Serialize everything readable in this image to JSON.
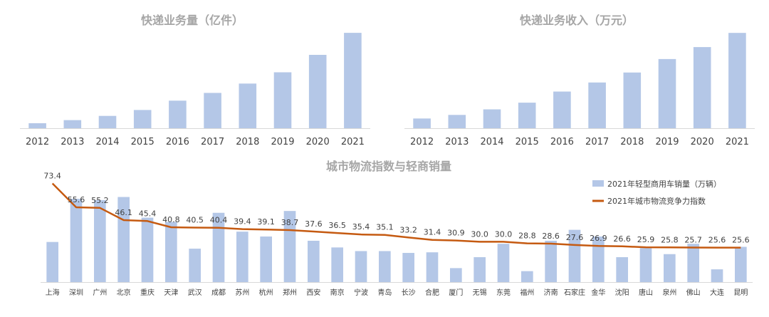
{
  "colors": {
    "bar": "#b4c7e7",
    "line": "#c55a11",
    "title": "#a6a6a6",
    "axis_text": "#404040",
    "axis_line": "#d9d9d9"
  },
  "chart_data": [
    {
      "type": "bar",
      "title": "快递业务量（亿件）",
      "categories": [
        "2012",
        "2013",
        "2014",
        "2015",
        "2016",
        "2017",
        "2018",
        "2019",
        "2020",
        "2021"
      ],
      "values": [
        57,
        92,
        140,
        207,
        313,
        401,
        507,
        635,
        833,
        1083
      ],
      "ylim": [
        0,
        1100
      ]
    },
    {
      "type": "bar",
      "title": "快递业务收入（万元）",
      "categories": [
        "2012",
        "2013",
        "2014",
        "2015",
        "2016",
        "2017",
        "2018",
        "2019",
        "2020",
        "2021"
      ],
      "values": [
        1055,
        1442,
        2045,
        2770,
        3974,
        4957,
        6038,
        7498,
        8795,
        10332
      ],
      "ylim": [
        0,
        10500
      ]
    },
    {
      "type": "bar+line",
      "title": "城市物流指数与轻商销量",
      "categories": [
        "上海",
        "深圳",
        "广州",
        "北京",
        "重庆",
        "天津",
        "武汉",
        "成都",
        "苏州",
        "杭州",
        "郑州",
        "西安",
        "南京",
        "宁波",
        "青岛",
        "长沙",
        "合肥",
        "厦门",
        "无锡",
        "东莞",
        "福州",
        "济南",
        "石家庄",
        "金华",
        "沈阳",
        "唐山",
        "泉州",
        "佛山",
        "大连",
        "昆明"
      ],
      "series": [
        {
          "name": "2021年轻型商用车销量（万辆）",
          "type": "bar",
          "values": [
            66,
            137,
            135,
            140,
            106,
            99,
            55,
            114,
            83,
            75,
            117,
            68,
            57,
            51,
            51,
            48,
            49,
            23,
            41,
            63,
            18,
            68,
            86,
            75,
            41,
            56,
            46,
            63,
            21,
            58
          ]
        },
        {
          "name": "2021年城市物流竞争力指数",
          "type": "line",
          "values": [
            73.4,
            55.6,
            55.2,
            46.1,
            45.4,
            40.8,
            40.5,
            40.4,
            39.4,
            39.1,
            38.7,
            37.6,
            36.5,
            35.4,
            35.1,
            33.2,
            31.4,
            30.9,
            30.0,
            30.0,
            28.8,
            28.6,
            27.6,
            26.9,
            26.6,
            25.9,
            25.8,
            25.7,
            25.6,
            25.6
          ]
        }
      ],
      "data_labels": [
        "73.4",
        "55.6",
        "55.2",
        "46.1",
        "45.4",
        "40.8",
        "40.5",
        "40.4",
        "39.4",
        "39.1",
        "38.7",
        "37.6",
        "36.5",
        "35.4",
        "35.1",
        "33.2",
        "31.4",
        "30.9",
        "30.0",
        "30.0",
        "28.8",
        "28.6",
        "27.6",
        "26.9",
        "26.6",
        "25.9",
        "25.8",
        "25.7",
        "25.6",
        "25.6"
      ],
      "legend_placement": "top-right",
      "ylim_bar": [
        0,
        150
      ],
      "ylim_line": [
        0,
        80
      ]
    }
  ]
}
